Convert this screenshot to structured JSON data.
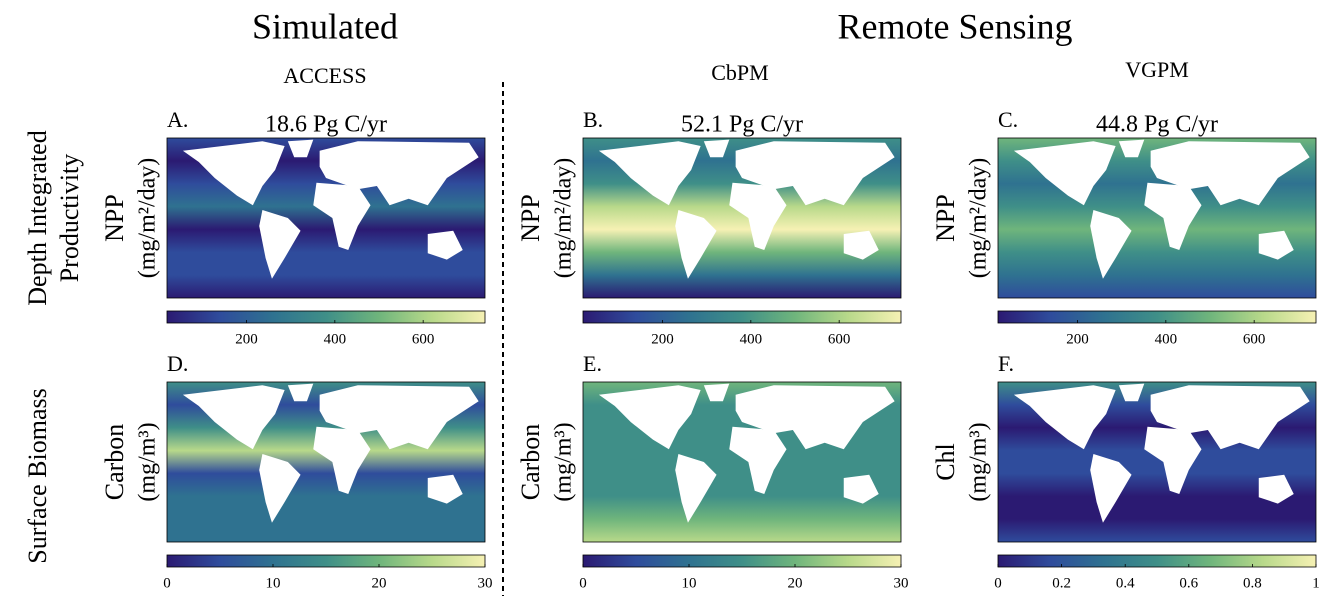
{
  "header": {
    "groups": [
      "Simulated",
      "Remote Sensing"
    ],
    "models": [
      "ACCESS",
      "CbPM",
      "VGPM"
    ]
  },
  "row_labels": [
    [
      "Depth Integrated",
      "Productivity"
    ],
    [
      "Surface Biomass"
    ]
  ],
  "colormap": [
    "#2b1a72",
    "#2f4c9c",
    "#2f7290",
    "#3f8f88",
    "#6fb57c",
    "#b8d98a",
    "#f6f1b4"
  ],
  "panels": [
    {
      "label": "A.",
      "total": "18.6 Pg C/yr",
      "ylabel": "NPP",
      "unit": "(mg/m²/day)",
      "clim": [
        20,
        740
      ],
      "cticks": [
        200,
        400,
        600
      ]
    },
    {
      "label": "B.",
      "total": "52.1 Pg C/yr",
      "ylabel": "NPP",
      "unit": "(mg/m²/day)",
      "clim": [
        20,
        740
      ],
      "cticks": [
        200,
        400,
        600
      ]
    },
    {
      "label": "C.",
      "total": "44.8 Pg C/yr",
      "ylabel": "NPP",
      "unit": "(mg/m²/day)",
      "clim": [
        20,
        740
      ],
      "cticks": [
        200,
        400,
        600
      ]
    },
    {
      "label": "D.",
      "ylabel": "Carbon",
      "unit": "(mg/m³)",
      "clim": [
        0,
        30
      ],
      "cticks": [
        0,
        10,
        20,
        30
      ]
    },
    {
      "label": "E.",
      "ylabel": "Carbon",
      "unit": "(mg/m³)",
      "clim": [
        0,
        30
      ],
      "cticks": [
        0,
        10,
        20,
        30
      ]
    },
    {
      "label": "F.",
      "ylabel": "Chl",
      "unit": "(mg/m³)",
      "clim": [
        0,
        1
      ],
      "cticks": [
        0,
        0.2,
        0.4,
        0.6,
        0.8,
        1
      ]
    }
  ]
}
